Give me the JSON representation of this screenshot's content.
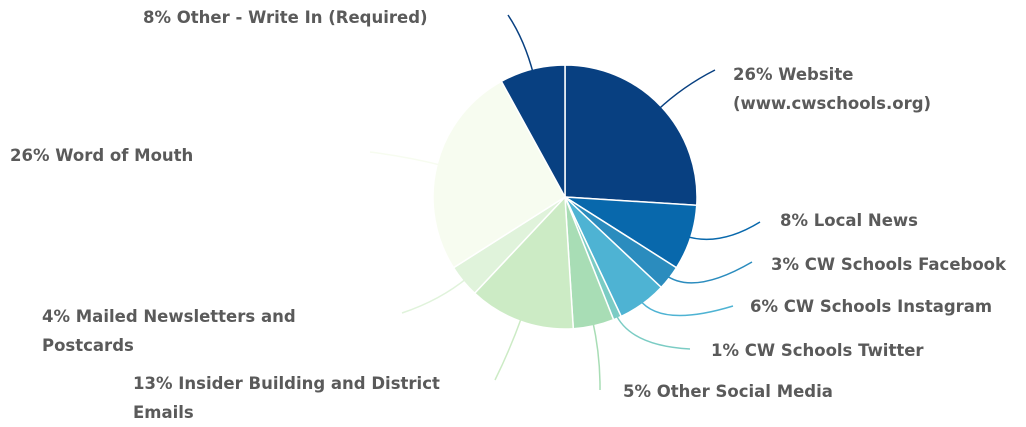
{
  "chart_data": {
    "type": "pie",
    "categories": [
      "Website (www.cwschools.org)",
      "Local News",
      "CW Schools Facebook",
      "CW Schools Instagram",
      "CW Schools Twitter",
      "Other Social Media",
      "Insider Building and District Emails",
      "Mailed Newsletters and Postcards",
      "Word of Mouth",
      "Other - Write In (Required)"
    ],
    "values": [
      26,
      8,
      3,
      6,
      1,
      5,
      13,
      4,
      26,
      8
    ],
    "value_labels": [
      "26%",
      "8%",
      "3%",
      "6%",
      "1%",
      "5%",
      "13%",
      "4%",
      "26%",
      "8%"
    ],
    "colors": [
      "#084081",
      "#0868ac",
      "#2b8cbe",
      "#4eb3d3",
      "#7bccc4",
      "#a8ddb5",
      "#ccebc5",
      "#e0f3db",
      "#f7fcf0",
      "#084081"
    ]
  }
}
